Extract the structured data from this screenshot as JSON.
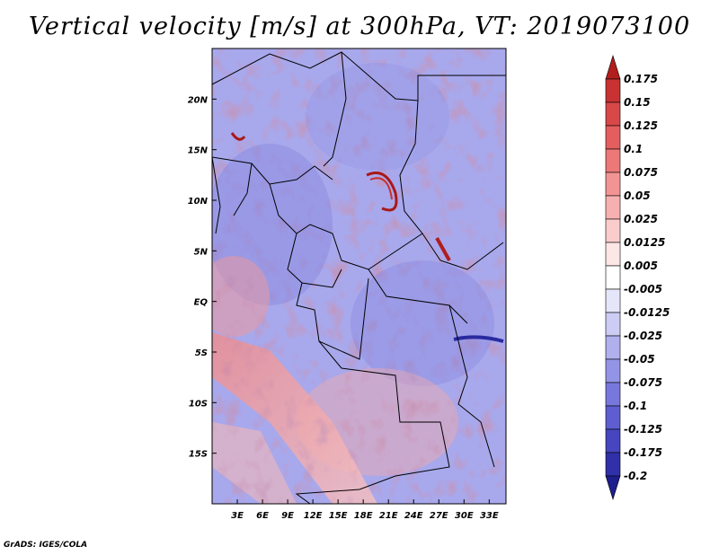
{
  "title": "Vertical velocity [m/s] at 300hPa, VT: 2019073100",
  "credit": "GrADS: IGES/COLA",
  "chart_data": {
    "type": "heatmap",
    "title": "Vertical velocity [m/s] at 300hPa, VT: 2019073100",
    "variable": "Vertical velocity",
    "units": "m/s",
    "level": "300hPa",
    "valid_time": "2019073100",
    "xlabel": "",
    "ylabel": "",
    "xlim": [
      0,
      35
    ],
    "ylim": [
      -20,
      25
    ],
    "x_ticks": [
      {
        "value": 3,
        "label": "3E"
      },
      {
        "value": 6,
        "label": "6E"
      },
      {
        "value": 9,
        "label": "9E"
      },
      {
        "value": 12,
        "label": "12E"
      },
      {
        "value": 15,
        "label": "15E"
      },
      {
        "value": 18,
        "label": "18E"
      },
      {
        "value": 21,
        "label": "21E"
      },
      {
        "value": 24,
        "label": "24E"
      },
      {
        "value": 27,
        "label": "27E"
      },
      {
        "value": 30,
        "label": "30E"
      },
      {
        "value": 33,
        "label": "33E"
      }
    ],
    "y_ticks": [
      {
        "value": 20,
        "label": "20N"
      },
      {
        "value": 15,
        "label": "15N"
      },
      {
        "value": 10,
        "label": "10N"
      },
      {
        "value": 5,
        "label": "5N"
      },
      {
        "value": 0,
        "label": "EQ"
      },
      {
        "value": -5,
        "label": "5S"
      },
      {
        "value": -10,
        "label": "10S"
      },
      {
        "value": -15,
        "label": "15S"
      }
    ],
    "colorbar": {
      "labels": [
        "0.175",
        "0.15",
        "0.125",
        "0.1",
        "0.075",
        "0.05",
        "0.025",
        "0.0125",
        "0.005",
        "-0.005",
        "-0.0125",
        "-0.025",
        "-0.05",
        "-0.075",
        "-0.1",
        "-0.125",
        "-0.175",
        "-0.2"
      ],
      "colors": [
        "#b21e1e",
        "#c83232",
        "#d84848",
        "#e45e5e",
        "#ec7878",
        "#f29494",
        "#f7b0b0",
        "#fbcccc",
        "#fde6e6",
        "#ffffff",
        "#e6e6fa",
        "#ccccf4",
        "#b0b0ee",
        "#9494e6",
        "#7878dc",
        "#5e5ed0",
        "#4646c0",
        "#3030a8",
        "#1e1e8c"
      ]
    }
  }
}
